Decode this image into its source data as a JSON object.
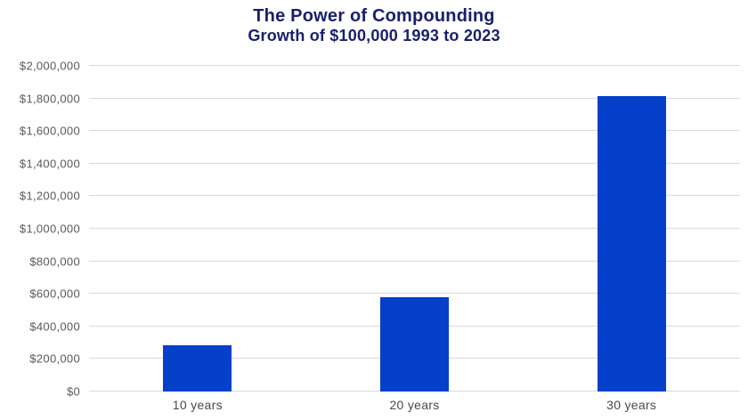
{
  "chart_data": {
    "type": "bar",
    "title": "The Power of Compounding",
    "subtitle": "Growth of $100,000 1993 to 2023",
    "categories": [
      "10 years",
      "20 years",
      "30 years"
    ],
    "values": [
      283000,
      580000,
      1815000
    ],
    "xlabel": "",
    "ylabel": "",
    "ylim": [
      0,
      2000000
    ],
    "ytick_step": 200000,
    "ytick_values": [
      0,
      200000,
      400000,
      600000,
      800000,
      1000000,
      1200000,
      1400000,
      1600000,
      1800000,
      2000000
    ],
    "ytick_labels": [
      "$0",
      "$200,000",
      "$400,000",
      "$600,000",
      "$800,000",
      "$1,000,000",
      "$1,200,000",
      "$1,400,000",
      "$1,600,000",
      "$1,800,000",
      "$2,000,000"
    ],
    "grid": true,
    "legend": false,
    "colors": {
      "bar": "#0540cb",
      "title": "#181f6e",
      "ytick_text": "#595959",
      "xtick_text": "#4a4a4a",
      "gridline": "#d9d9d9",
      "background": "#ffffff"
    }
  }
}
